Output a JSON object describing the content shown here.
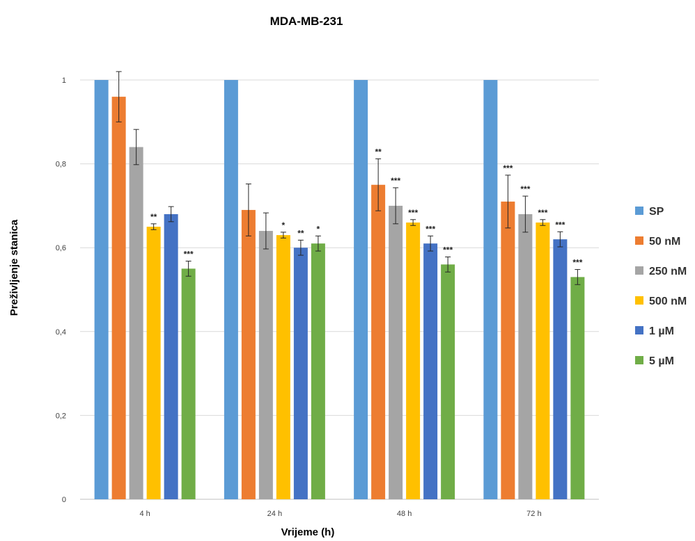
{
  "chart_data": {
    "type": "bar",
    "title": "MDA-MB-231",
    "xlabel": "Vrijeme (h)",
    "ylabel": "Preživljenje stanica",
    "ylim": [
      0,
      1
    ],
    "yticks": [
      "0",
      "0,2",
      "0,4",
      "0,6",
      "0,8",
      "1"
    ],
    "ytick_values": [
      0,
      0.2,
      0.4,
      0.6,
      0.8,
      1.0
    ],
    "categories": [
      "4 h",
      "24 h",
      "48 h",
      "72 h"
    ],
    "grid": true,
    "legend_position": "right",
    "series": [
      {
        "name": "SP",
        "color": "#5B9BD5",
        "values": [
          1.0,
          1.0,
          1.0,
          1.0
        ],
        "errors": [
          0,
          0,
          0,
          0
        ],
        "sig": [
          "",
          "",
          "",
          ""
        ]
      },
      {
        "name": "50 nM",
        "color": "#ED7D31",
        "values": [
          0.96,
          0.69,
          0.75,
          0.71
        ],
        "errors": [
          0.06,
          0.062,
          0.062,
          0.063
        ],
        "sig": [
          "",
          "",
          "**",
          "***"
        ]
      },
      {
        "name": "250 nM",
        "color": "#A5A5A5",
        "values": [
          0.84,
          0.64,
          0.7,
          0.68
        ],
        "errors": [
          0.042,
          0.043,
          0.043,
          0.043
        ],
        "sig": [
          "",
          "",
          "***",
          "***"
        ]
      },
      {
        "name": "500 nM",
        "color": "#FFC000",
        "values": [
          0.65,
          0.63,
          0.66,
          0.66
        ],
        "errors": [
          0.007,
          0.007,
          0.007,
          0.007
        ],
        "sig": [
          "**",
          "*",
          "***",
          "***"
        ]
      },
      {
        "name": "1 µM",
        "color": "#4472C4",
        "values": [
          0.68,
          0.6,
          0.61,
          0.62
        ],
        "errors": [
          0.018,
          0.018,
          0.018,
          0.018
        ],
        "sig": [
          "",
          "**",
          "***",
          "***"
        ]
      },
      {
        "name": "5 µM",
        "color": "#70AD47",
        "values": [
          0.55,
          0.61,
          0.56,
          0.53
        ],
        "errors": [
          0.018,
          0.018,
          0.018,
          0.018
        ],
        "sig": [
          "***",
          "*",
          "***",
          "***"
        ]
      }
    ]
  }
}
